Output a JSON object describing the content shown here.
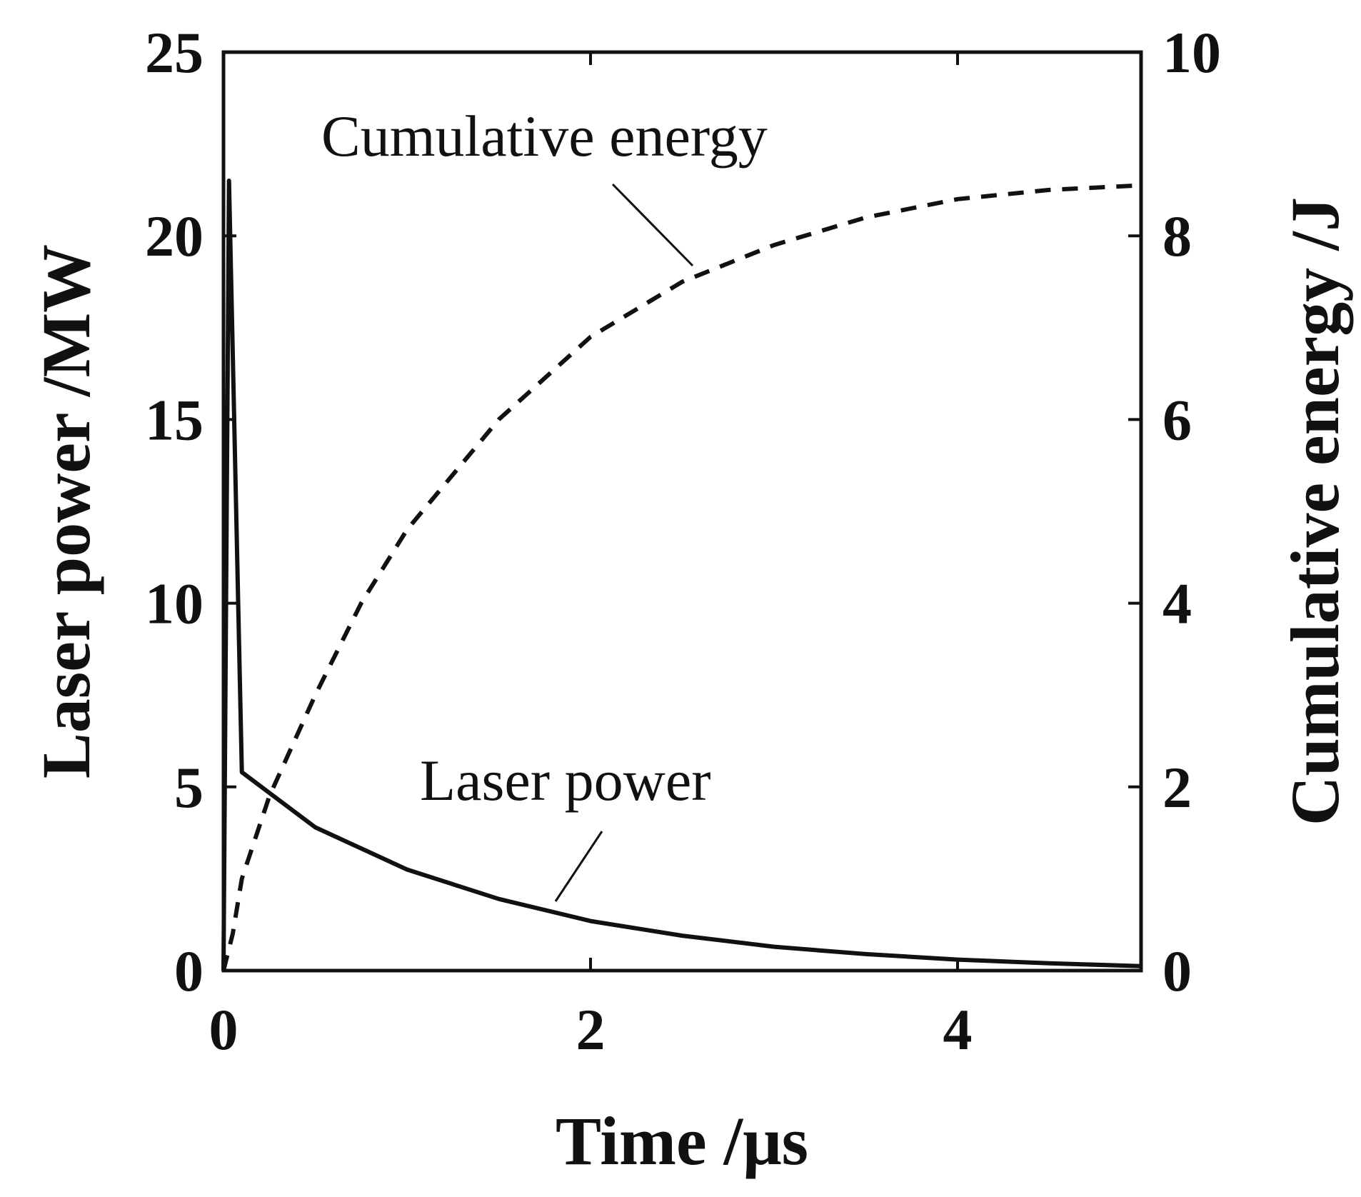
{
  "chart_data": {
    "type": "line",
    "title": "",
    "xlabel": "Time /μs",
    "ylabel_left": "Laser power /MW",
    "ylabel_right": "Cumulative energy /J",
    "xlim": [
      0,
      5
    ],
    "ylim_left": [
      0,
      25
    ],
    "ylim_right": [
      0,
      10
    ],
    "x_ticks": [
      "0",
      "2",
      "4"
    ],
    "x_tick_values": [
      0,
      2,
      4
    ],
    "y_left_ticks": [
      "0",
      "5",
      "10",
      "15",
      "20",
      "25"
    ],
    "y_left_tick_values": [
      0,
      5,
      10,
      15,
      20,
      25
    ],
    "y_right_ticks": [
      "0",
      "2",
      "4",
      "6",
      "8",
      "10"
    ],
    "y_right_tick_values": [
      0,
      2,
      4,
      6,
      8,
      10
    ],
    "grid": false,
    "line_color": "#111111",
    "series": [
      {
        "name": "Laser power",
        "axis": "left",
        "style": "solid",
        "x": [
          0,
          0.03,
          0.1,
          0.5,
          1.0,
          1.5,
          2.0,
          2.5,
          3.0,
          3.5,
          4.0,
          4.5,
          5.0
        ],
        "y": [
          0,
          21.5,
          5.4,
          3.9,
          2.75,
          1.95,
          1.35,
          0.95,
          0.65,
          0.45,
          0.3,
          0.2,
          0.12
        ]
      },
      {
        "name": "Cumulative energy",
        "axis": "right",
        "style": "dashed",
        "x": [
          0,
          0.05,
          0.1,
          0.25,
          0.5,
          0.75,
          1.0,
          1.5,
          2.0,
          2.5,
          3.0,
          3.5,
          4.0,
          4.5,
          5.0
        ],
        "y": [
          0,
          0.4,
          1.0,
          1.9,
          3.0,
          4.0,
          4.8,
          6.0,
          6.9,
          7.5,
          7.9,
          8.2,
          8.4,
          8.5,
          8.55
        ]
      }
    ],
    "annotations": [
      {
        "text": "Cumulative energy",
        "points_to": "Cumulative energy",
        "target_x": 2.55,
        "target_y_right": 7.5
      },
      {
        "text": "Laser power",
        "points_to": "Laser power",
        "target_x": 1.8,
        "target_y_left": 1.7
      }
    ]
  }
}
